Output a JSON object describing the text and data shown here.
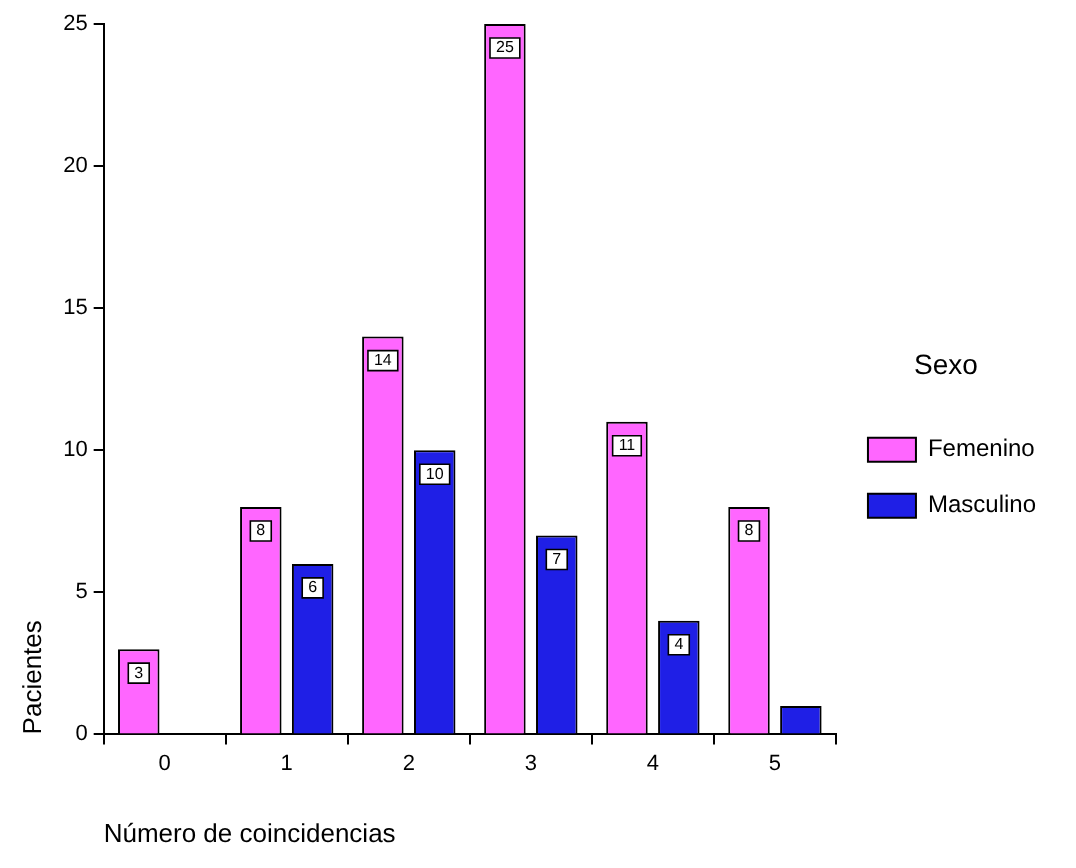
{
  "chart_data": {
    "type": "bar",
    "xlabel": "Número de coincidencias",
    "ylabel": "Pacientes",
    "legend_title": "Sexo",
    "legend": "right",
    "grid": false,
    "categories": [
      "0",
      "1",
      "2",
      "3",
      "4",
      "5"
    ],
    "series": [
      {
        "name": "Femenino",
        "color": "#ff66ff",
        "values": [
          3,
          8,
          14,
          25,
          11,
          8
        ],
        "value_labels": [
          "3",
          "8",
          "14",
          "25",
          "11",
          "8"
        ]
      },
      {
        "name": "Masculino",
        "color": "#1f1fe6",
        "values": [
          null,
          6,
          10,
          7,
          4,
          1
        ],
        "value_labels": [
          null,
          "6",
          "10",
          "7",
          "4",
          null
        ]
      }
    ],
    "ylim": [
      0,
      25
    ],
    "yticks": [
      0,
      5,
      10,
      15,
      20,
      25
    ]
  }
}
